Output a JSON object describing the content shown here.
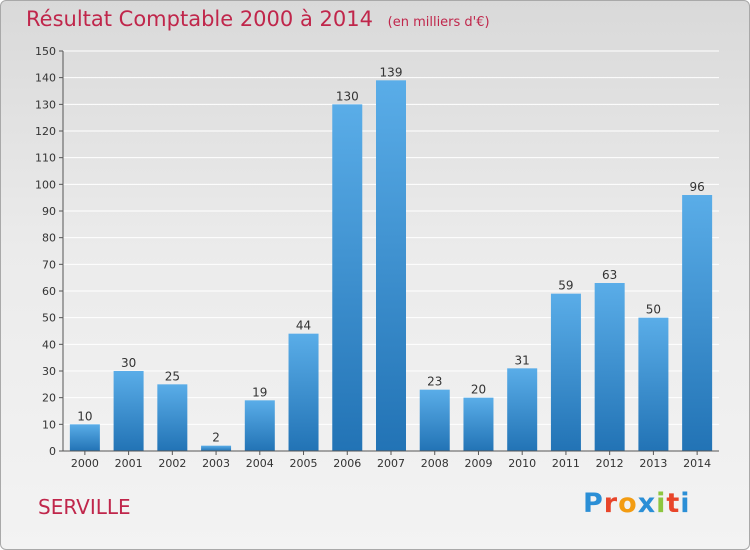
{
  "title": "Résultat Comptable 2000 à 2014",
  "title_unit": "(en milliers d'€)",
  "city": "SERVILLE",
  "logo": {
    "letters": [
      "P",
      "r",
      "o",
      "x",
      "i",
      "t",
      "i"
    ],
    "colors": [
      "#2b8fd6",
      "#e8452a",
      "#f39c12",
      "#2b8fd6",
      "#8dc63f",
      "#e8452a",
      "#2b8fd6"
    ]
  },
  "colors": {
    "bar_top": "#5aade8",
    "bar_bottom": "#2273b5",
    "axis": "#555555",
    "grid": "#ffffff"
  },
  "chart_data": {
    "type": "bar",
    "title": "Résultat Comptable 2000 à 2014",
    "categories": [
      "2000",
      "2001",
      "2002",
      "2003",
      "2004",
      "2005",
      "2006",
      "2007",
      "2008",
      "2009",
      "2010",
      "2011",
      "2012",
      "2013",
      "2014"
    ],
    "values": [
      10,
      30,
      25,
      2,
      19,
      44,
      130,
      139,
      23,
      20,
      31,
      59,
      63,
      50,
      96
    ],
    "xlabel": "",
    "ylabel": "",
    "ylim": [
      0,
      150
    ],
    "yticks": [
      0,
      10,
      20,
      30,
      40,
      50,
      60,
      70,
      80,
      90,
      100,
      110,
      120,
      130,
      140,
      150
    ],
    "grid": true,
    "data_labels": true
  }
}
